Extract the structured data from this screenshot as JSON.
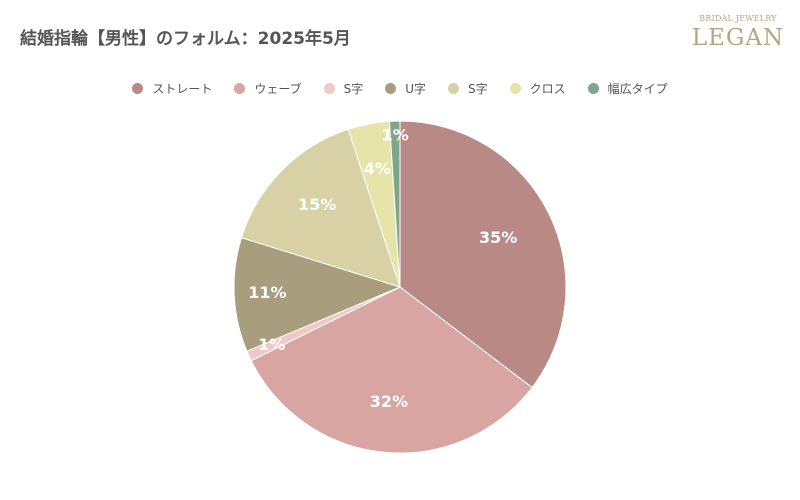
{
  "logo": {
    "line1": "BRIDAL JEWELRY",
    "line2": "LEGAN"
  },
  "chart_data": {
    "type": "pie",
    "title": "結婚指輪【男性】のフォルム：2025年5月",
    "legend_position": "top",
    "slices": [
      {
        "name": "ストレート",
        "value": 35,
        "label": "35%",
        "color": "#b88985"
      },
      {
        "name": "ウェーブ",
        "value": 32,
        "label": "32%",
        "color": "#d9a5a3"
      },
      {
        "name": "S字",
        "value": 1,
        "label": "1%",
        "color": "#f0c8c6"
      },
      {
        "name": "U字",
        "value": 11,
        "label": "11%",
        "color": "#a89d7c"
      },
      {
        "name": "S字",
        "value": 15,
        "label": "15%",
        "color": "#d9d1a6"
      },
      {
        "name": "クロス",
        "value": 4,
        "label": "4%",
        "color": "#e6e4a8"
      },
      {
        "name": "幅広タイプ",
        "value": 1,
        "label": "1%",
        "color": "#7fa58a"
      }
    ]
  }
}
